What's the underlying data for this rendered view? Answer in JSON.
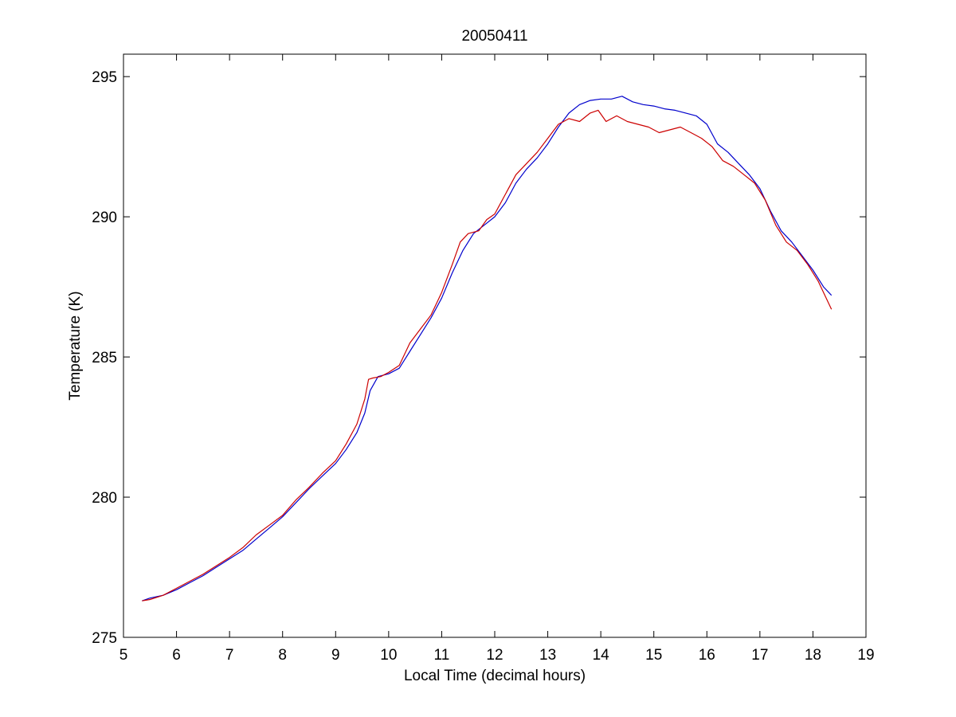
{
  "chart_data": {
    "type": "line",
    "title": "20050411",
    "xlabel": "Local Time (decimal hours)",
    "ylabel": "Temperature (K)",
    "xlim": [
      5,
      19
    ],
    "ylim": [
      275,
      295.8
    ],
    "xticks": [
      5,
      6,
      7,
      8,
      9,
      10,
      11,
      12,
      13,
      14,
      15,
      16,
      17,
      18,
      19
    ],
    "yticks": [
      275,
      280,
      285,
      290,
      295
    ],
    "grid": false,
    "legend": "none",
    "series": [
      {
        "color": "#0000cc",
        "x": [
          5.35,
          5.5,
          5.75,
          6.0,
          6.25,
          6.5,
          6.75,
          7.0,
          7.25,
          7.5,
          7.75,
          8.0,
          8.25,
          8.5,
          8.75,
          9.0,
          9.2,
          9.4,
          9.55,
          9.65,
          9.8,
          10.0,
          10.2,
          10.4,
          10.6,
          10.8,
          11.0,
          11.2,
          11.4,
          11.6,
          11.8,
          12.0,
          12.2,
          12.4,
          12.6,
          12.8,
          13.0,
          13.2,
          13.4,
          13.6,
          13.8,
          14.0,
          14.2,
          14.4,
          14.6,
          14.8,
          15.0,
          15.2,
          15.4,
          15.6,
          15.8,
          16.0,
          16.2,
          16.4,
          16.6,
          16.8,
          17.0,
          17.2,
          17.4,
          17.6,
          17.8,
          18.0,
          18.2,
          18.35
        ],
        "y": [
          276.3,
          276.4,
          276.5,
          276.7,
          276.95,
          277.2,
          277.5,
          277.8,
          278.1,
          278.5,
          278.9,
          279.3,
          279.8,
          280.3,
          280.75,
          281.2,
          281.7,
          282.3,
          283.0,
          283.8,
          284.3,
          284.4,
          284.6,
          285.2,
          285.8,
          286.4,
          287.1,
          288.0,
          288.8,
          289.4,
          289.7,
          290.0,
          290.5,
          291.2,
          291.7,
          292.1,
          292.6,
          293.2,
          293.7,
          294.0,
          294.15,
          294.2,
          294.2,
          294.3,
          294.1,
          294.0,
          293.95,
          293.85,
          293.8,
          293.7,
          293.6,
          293.3,
          292.6,
          292.3,
          291.9,
          291.5,
          291.0,
          290.2,
          289.5,
          289.1,
          288.6,
          288.1,
          287.5,
          287.2
        ]
      },
      {
        "color": "#cc0000",
        "x": [
          5.35,
          5.5,
          5.75,
          6.0,
          6.25,
          6.5,
          6.75,
          7.0,
          7.25,
          7.5,
          7.75,
          8.0,
          8.25,
          8.5,
          8.75,
          9.0,
          9.2,
          9.4,
          9.55,
          9.62,
          9.7,
          9.85,
          10.0,
          10.2,
          10.4,
          10.6,
          10.8,
          11.0,
          11.2,
          11.35,
          11.5,
          11.7,
          11.85,
          12.0,
          12.2,
          12.4,
          12.6,
          12.8,
          13.0,
          13.2,
          13.4,
          13.6,
          13.8,
          13.95,
          14.1,
          14.3,
          14.5,
          14.7,
          14.9,
          15.1,
          15.3,
          15.5,
          15.7,
          15.9,
          16.1,
          16.3,
          16.5,
          16.7,
          16.9,
          17.1,
          17.3,
          17.5,
          17.7,
          17.9,
          18.1,
          18.35
        ],
        "y": [
          276.3,
          276.35,
          276.5,
          276.75,
          277.0,
          277.25,
          277.55,
          277.85,
          278.2,
          278.65,
          279.0,
          279.35,
          279.9,
          280.35,
          280.85,
          281.3,
          281.9,
          282.6,
          283.5,
          284.2,
          284.25,
          284.3,
          284.45,
          284.7,
          285.5,
          286.0,
          286.5,
          287.3,
          288.3,
          289.1,
          289.4,
          289.5,
          289.9,
          290.1,
          290.8,
          291.5,
          291.9,
          292.3,
          292.8,
          293.3,
          293.5,
          293.4,
          293.7,
          293.8,
          293.4,
          293.6,
          293.4,
          293.3,
          293.2,
          293.0,
          293.1,
          293.2,
          293.0,
          292.8,
          292.5,
          292.0,
          291.8,
          291.5,
          291.2,
          290.6,
          289.7,
          289.1,
          288.8,
          288.3,
          287.7,
          286.7
        ]
      }
    ]
  }
}
